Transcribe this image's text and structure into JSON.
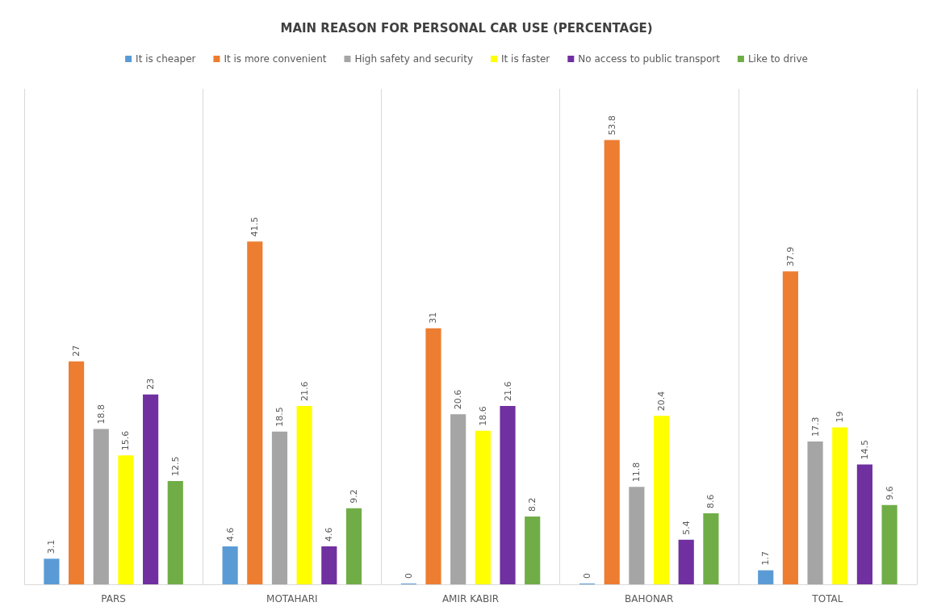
{
  "chart_data": {
    "type": "bar",
    "title": "MAIN REASON FOR PERSONAL CAR USE (PERCENTAGE)",
    "categories": [
      "PARS",
      "MOTAHARI",
      "AMIR KABIR",
      "BAHONAR",
      "TOTAL"
    ],
    "series": [
      {
        "name": "It is cheaper",
        "color": "#5b9bd5",
        "values": [
          3.1,
          4.6,
          0,
          0,
          1.7
        ]
      },
      {
        "name": "It is more convenient",
        "color": "#ed7d31",
        "values": [
          27,
          41.5,
          31,
          53.8,
          37.9
        ]
      },
      {
        "name": "High safety and security",
        "color": "#a5a5a5",
        "values": [
          18.8,
          18.5,
          20.6,
          11.8,
          17.3
        ]
      },
      {
        "name": "It is faster",
        "color": "#ffff00",
        "values": [
          15.6,
          21.6,
          18.6,
          20.4,
          19
        ]
      },
      {
        "name": "No access to public transport",
        "color": "#7030a0",
        "values": [
          23,
          4.6,
          21.6,
          5.4,
          14.5
        ]
      },
      {
        "name": "Like to drive",
        "color": "#70ad47",
        "values": [
          12.5,
          9.2,
          8.2,
          8.6,
          9.6
        ]
      }
    ],
    "data_labels": true,
    "grid": "x",
    "legend": "top",
    "tick_labels": "x"
  }
}
